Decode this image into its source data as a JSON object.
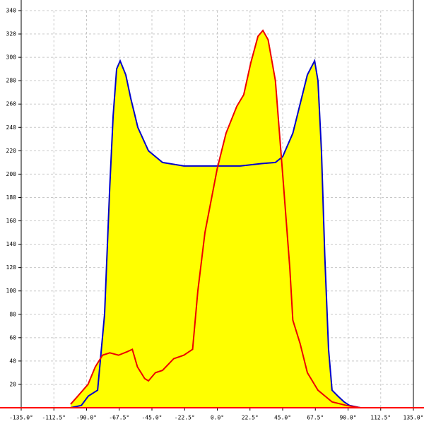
{
  "chart_data": {
    "type": "area",
    "xlim": [
      -135,
      135
    ],
    "ylim": [
      0,
      340
    ],
    "xticks": [
      {
        "value": -135,
        "label": "-135.0°"
      },
      {
        "value": -112.5,
        "label": "-112.5°"
      },
      {
        "value": -90,
        "label": "-90.0°"
      },
      {
        "value": -67.5,
        "label": "-67.5°"
      },
      {
        "value": -45,
        "label": "-45.0°"
      },
      {
        "value": -22.5,
        "label": "-22.5°"
      },
      {
        "value": 0,
        "label": "0.0°"
      },
      {
        "value": 22.5,
        "label": "22.5°"
      },
      {
        "value": 45,
        "label": "45.0°"
      },
      {
        "value": 67.5,
        "label": "67.5°"
      },
      {
        "value": 90,
        "label": "90.0°"
      },
      {
        "value": 112.5,
        "label": "112.5°"
      },
      {
        "value": 135,
        "label": "135.0°"
      }
    ],
    "yticks": [
      20,
      40,
      60,
      80,
      100,
      120,
      140,
      160,
      180,
      200,
      220,
      240,
      260,
      280,
      300,
      320,
      340
    ],
    "grid": true,
    "fill": "#ffff00",
    "axis_color": "#ff0000",
    "series": [
      {
        "color": "#0000cc",
        "x": [
          -101,
          -93.6,
          -88.8,
          -82.4,
          -77.6,
          -74,
          -71.7,
          -69.3,
          -66.9,
          -63,
          -59.6,
          -54.7,
          -47.4,
          -37.7,
          -23,
          0,
          15.8,
          30.4,
          40,
          45,
          52,
          57,
          62,
          67,
          69.3,
          71.7,
          74,
          76.6,
          79,
          83,
          87.3,
          91,
          98.5
        ],
        "values": [
          0,
          2,
          10,
          15,
          80,
          190,
          250,
          290,
          297,
          285,
          265,
          240,
          220,
          210,
          207,
          207,
          207,
          209,
          210,
          215,
          235,
          260,
          285,
          297,
          280,
          220,
          130,
          50,
          15,
          10,
          5,
          2,
          0
        ]
      },
      {
        "color": "#ee0000",
        "x": [
          -101,
          -96,
          -89,
          -84,
          -79,
          -74,
          -68,
          -62,
          -58.5,
          -55,
          -50,
          -47.4,
          -42.6,
          -37.7,
          -30,
          -23,
          -17,
          -13.4,
          -8.5,
          0,
          6,
          13.4,
          18.2,
          23,
          28,
          31.4,
          35,
          40,
          45,
          49.9,
          52,
          57,
          62,
          69.3,
          79,
          88.8,
          98.5
        ],
        "values": [
          3,
          10,
          20,
          35,
          45,
          47,
          45,
          48,
          50,
          35,
          25,
          23,
          30,
          32,
          42,
          45,
          50,
          100,
          150,
          205,
          235,
          258,
          268,
          295,
          318,
          323,
          315,
          280,
          200,
          120,
          75,
          55,
          30,
          15,
          5,
          2,
          0
        ]
      }
    ]
  }
}
